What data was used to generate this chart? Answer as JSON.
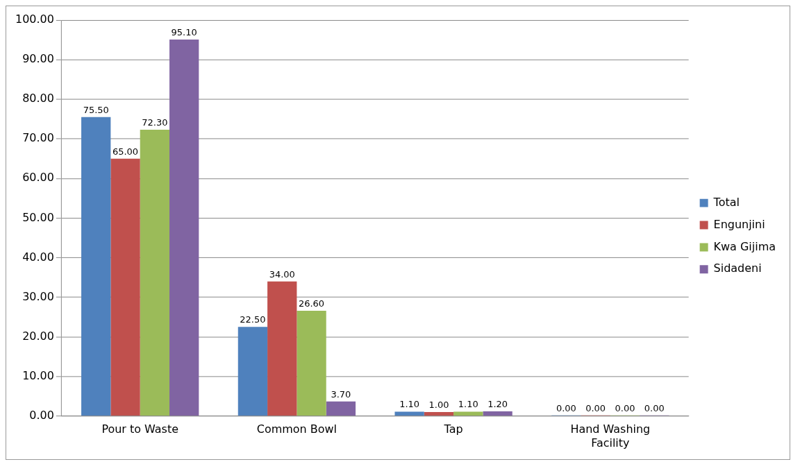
{
  "chart_data": {
    "type": "bar",
    "categories": [
      "Pour to Waste",
      "Common Bowl",
      "Tap",
      "Hand Washing Facility"
    ],
    "series": [
      {
        "name": "Total",
        "color": "#4f81bd",
        "values": [
          75.5,
          22.5,
          1.1,
          0.0
        ],
        "value_labels": [
          "75.50",
          "22.50",
          "1.10",
          "0.00"
        ]
      },
      {
        "name": "Engunjini",
        "color": "#c0504d",
        "values": [
          65.0,
          34.0,
          1.0,
          0.0
        ],
        "value_labels": [
          "65.00",
          "34.00",
          "1.00",
          "0.00"
        ]
      },
      {
        "name": "Kwa Gijima",
        "color": "#9bbb59",
        "values": [
          72.3,
          26.6,
          1.1,
          0.0
        ],
        "value_labels": [
          "72.30",
          "26.60",
          "1.10",
          "0.00"
        ]
      },
      {
        "name": "Sidadeni",
        "color": "#8064a2",
        "values": [
          95.1,
          3.7,
          1.2,
          0.0
        ],
        "value_labels": [
          "95.10",
          "3.70",
          "1.20",
          "0.00"
        ]
      }
    ],
    "ylim": [
      0,
      100
    ],
    "yticks": [
      {
        "value": 0,
        "label": "0.00"
      },
      {
        "value": 10,
        "label": "10.00"
      },
      {
        "value": 20,
        "label": "20.00"
      },
      {
        "value": 30,
        "label": "30.00"
      },
      {
        "value": 40,
        "label": "40.00"
      },
      {
        "value": 50,
        "label": "50.00"
      },
      {
        "value": 60,
        "label": "60.00"
      },
      {
        "value": 70,
        "label": "70.00"
      },
      {
        "value": 80,
        "label": "80.00"
      },
      {
        "value": 90,
        "label": "90.00"
      },
      {
        "value": 100,
        "label": "100.00"
      }
    ],
    "grid": "y",
    "legend": "right"
  }
}
